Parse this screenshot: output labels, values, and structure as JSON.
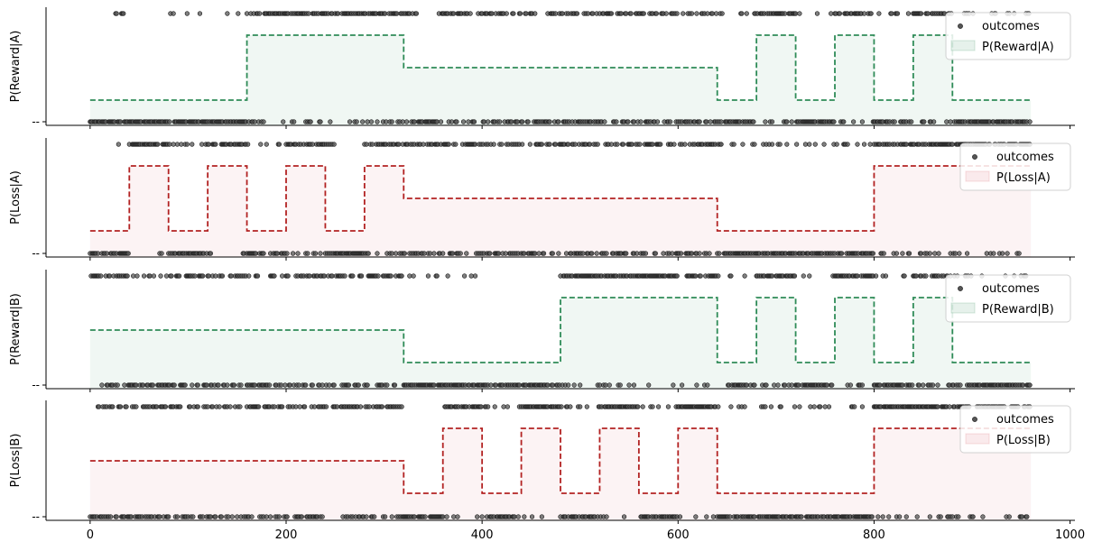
{
  "chart_data": {
    "type": "line",
    "x_ticks": [
      0,
      200,
      400,
      600,
      800,
      1000
    ],
    "xlim": [
      -45,
      1005
    ],
    "y_tick_label": "--",
    "outcome_marker_color": "#333333",
    "panels": [
      {
        "ylabel": "P(Reward|A)",
        "color": "#2e8b57",
        "fill": "#2e8b57",
        "series_name": "P(Reward|A)",
        "scatter_name": "outcomes",
        "legend": "top-right",
        "ylim": [
          0.0,
          1.0
        ],
        "levels": [
          0.2,
          0.2,
          0.2,
          0.2,
          0.8,
          0.8,
          0.8,
          0.8,
          0.5,
          0.5,
          0.5,
          0.5,
          0.5,
          0.5,
          0.5,
          0.5,
          0.2,
          0.8,
          0.2,
          0.8,
          0.2,
          0.8,
          0.2,
          0.2
        ],
        "outcome_gaps": {
          "top": [
            [
              3,
              22
            ],
            [
              36,
              76
            ],
            [
              118,
              138
            ]
          ],
          "bottom": []
        }
      },
      {
        "ylabel": "P(Loss|A)",
        "color": "#b22222",
        "fill": "#d65a6a",
        "series_name": "P(Loss|A)",
        "scatter_name": "outcomes",
        "legend": "top-right",
        "ylim": [
          0.0,
          1.0
        ],
        "levels": [
          0.2,
          0.8,
          0.2,
          0.8,
          0.2,
          0.8,
          0.2,
          0.8,
          0.5,
          0.5,
          0.5,
          0.5,
          0.5,
          0.5,
          0.5,
          0.5,
          0.2,
          0.2,
          0.2,
          0.2,
          0.8,
          0.8,
          0.8,
          0.8
        ],
        "outcome_gaps": {
          "top": [
            [
              0,
              14
            ],
            [
              250,
              268
            ]
          ],
          "bottom": [
            [
              58,
              64
            ],
            [
              130,
              150
            ]
          ]
        }
      },
      {
        "ylabel": "P(Reward|B)",
        "color": "#2e8b57",
        "fill": "#2e8b57",
        "series_name": "P(Reward|B)",
        "scatter_name": "outcomes",
        "legend": "top-right",
        "ylim": [
          0.0,
          1.0
        ],
        "levels": [
          0.5,
          0.5,
          0.5,
          0.5,
          0.5,
          0.5,
          0.5,
          0.5,
          0.2,
          0.2,
          0.2,
          0.2,
          0.8,
          0.8,
          0.8,
          0.8,
          0.2,
          0.8,
          0.2,
          0.8,
          0.2,
          0.8,
          0.2,
          0.2
        ],
        "outcome_gaps": {
          "top": [
            [
              395,
              470
            ],
            [
              600,
              608
            ]
          ],
          "bottom": [
            [
              0,
              3
            ],
            [
              640,
              650
            ]
          ]
        }
      },
      {
        "ylabel": "P(Loss|B)",
        "color": "#b22222",
        "fill": "#d65a6a",
        "series_name": "P(Loss|B)",
        "scatter_name": "outcomes",
        "legend": "top-right",
        "ylim": [
          0.0,
          1.0
        ],
        "levels": [
          0.5,
          0.5,
          0.5,
          0.5,
          0.5,
          0.5,
          0.5,
          0.5,
          0.2,
          0.8,
          0.2,
          0.8,
          0.2,
          0.8,
          0.2,
          0.8,
          0.2,
          0.2,
          0.2,
          0.2,
          0.8,
          0.8,
          0.8,
          0.8
        ],
        "outcome_gaps": {
          "top": [
            [
              320,
              345
            ]
          ],
          "bottom": [
            [
              240,
              255
            ]
          ]
        }
      }
    ],
    "segment_length": 40,
    "n_trials": 960
  }
}
